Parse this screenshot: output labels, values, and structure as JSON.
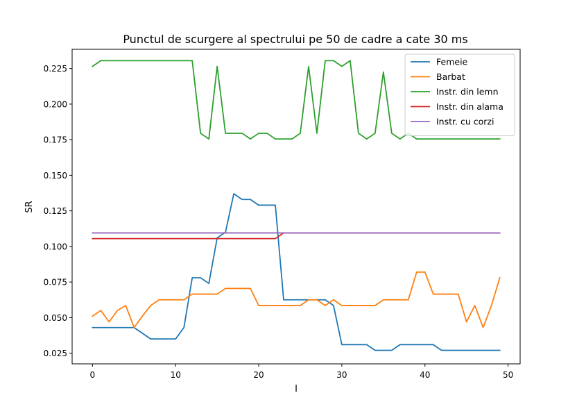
{
  "chart_data": {
    "type": "line",
    "title": "Punctul de scurgere al spectrului pe 50 de cadre a cate 30 ms",
    "xlabel": "I",
    "ylabel": "SR",
    "xlim": [
      -2.45,
      51.45
    ],
    "ylim": [
      0.0175,
      0.2385
    ],
    "x_ticks": [
      0,
      10,
      20,
      30,
      40,
      50
    ],
    "x_tick_labels": [
      "0",
      "10",
      "20",
      "30",
      "40",
      "50"
    ],
    "y_ticks": [
      0.025,
      0.05,
      0.075,
      0.1,
      0.125,
      0.15,
      0.175,
      0.2,
      0.225
    ],
    "y_tick_labels": [
      "0.025",
      "0.050",
      "0.075",
      "0.100",
      "0.125",
      "0.150",
      "0.175",
      "0.200",
      "0.225"
    ],
    "grid": false,
    "legend_position": "top-right",
    "x": [
      0,
      1,
      2,
      3,
      4,
      5,
      6,
      7,
      8,
      9,
      10,
      11,
      12,
      13,
      14,
      15,
      16,
      17,
      18,
      19,
      20,
      21,
      22,
      23,
      24,
      25,
      26,
      27,
      28,
      29,
      30,
      31,
      32,
      33,
      34,
      35,
      36,
      37,
      38,
      39,
      40,
      41,
      42,
      43,
      44,
      45,
      46,
      47,
      48,
      49
    ],
    "series": [
      {
        "name": "Femeie",
        "color": "#1f77b4",
        "values": [
          0.043,
          0.043,
          0.043,
          0.043,
          0.043,
          0.043,
          0.039,
          0.035,
          0.035,
          0.035,
          0.035,
          0.043,
          0.078,
          0.078,
          0.074,
          0.106,
          0.11,
          0.137,
          0.133,
          0.133,
          0.129,
          0.129,
          0.129,
          0.0625,
          0.0625,
          0.0625,
          0.0625,
          0.0625,
          0.0625,
          0.0585,
          0.031,
          0.031,
          0.031,
          0.031,
          0.027,
          0.027,
          0.027,
          0.031,
          0.031,
          0.031,
          0.031,
          0.031,
          0.027,
          0.027,
          0.027,
          0.027,
          0.027,
          0.027,
          0.027,
          0.027
        ]
      },
      {
        "name": "Barbat",
        "color": "#ff7f0e",
        "values": [
          0.051,
          0.055,
          0.047,
          0.055,
          0.0585,
          0.043,
          0.051,
          0.0585,
          0.0625,
          0.0625,
          0.0625,
          0.0625,
          0.0665,
          0.0665,
          0.0665,
          0.0665,
          0.0705,
          0.0705,
          0.0705,
          0.0705,
          0.0585,
          0.0585,
          0.0585,
          0.0585,
          0.0585,
          0.0585,
          0.0625,
          0.0625,
          0.0585,
          0.0625,
          0.0585,
          0.0585,
          0.0585,
          0.0585,
          0.0585,
          0.0625,
          0.0625,
          0.0625,
          0.0625,
          0.082,
          0.082,
          0.0665,
          0.0665,
          0.0665,
          0.0665,
          0.047,
          0.0585,
          0.043,
          0.0585,
          0.078
        ]
      },
      {
        "name": "Instr. din lemn",
        "color": "#2ca02c",
        "values": [
          0.2265,
          0.2305,
          0.2305,
          0.2305,
          0.2305,
          0.2305,
          0.2305,
          0.2305,
          0.2305,
          0.2305,
          0.2305,
          0.2305,
          0.2305,
          0.1795,
          0.1755,
          0.2265,
          0.1795,
          0.1795,
          0.1795,
          0.1755,
          0.1795,
          0.1795,
          0.1755,
          0.1755,
          0.1755,
          0.1795,
          0.2265,
          0.1795,
          0.2305,
          0.2305,
          0.2265,
          0.2305,
          0.1795,
          0.1755,
          0.1795,
          0.2225,
          0.1795,
          0.1755,
          0.1795,
          0.1755,
          0.1755,
          0.1755,
          0.1755,
          0.1755,
          0.1755,
          0.1755,
          0.1755,
          0.1755,
          0.1755,
          0.1755
        ]
      },
      {
        "name": "Instr. din alama",
        "color": "#d62728",
        "values": [
          0.1055,
          0.1055,
          0.1055,
          0.1055,
          0.1055,
          0.1055,
          0.1055,
          0.1055,
          0.1055,
          0.1055,
          0.1055,
          0.1055,
          0.1055,
          0.1055,
          0.1055,
          0.1055,
          0.1055,
          0.1055,
          0.1055,
          0.1055,
          0.1055,
          0.1055,
          0.1055,
          0.1095,
          0.1095,
          0.1095,
          0.1095,
          0.1095,
          0.1095,
          0.1095,
          0.1095,
          0.1095,
          0.1095,
          0.1095,
          0.1095,
          0.1095,
          0.1095,
          0.1095,
          0.1095,
          0.1095,
          0.1095,
          0.1095,
          0.1095,
          0.1095,
          0.1095,
          0.1095,
          0.1095,
          0.1095,
          0.1095,
          0.1095
        ]
      },
      {
        "name": "Instr. cu corzi",
        "color": "#9467bd",
        "values": [
          0.1095,
          0.1095,
          0.1095,
          0.1095,
          0.1095,
          0.1095,
          0.1095,
          0.1095,
          0.1095,
          0.1095,
          0.1095,
          0.1095,
          0.1095,
          0.1095,
          0.1095,
          0.1095,
          0.1095,
          0.1095,
          0.1095,
          0.1095,
          0.1095,
          0.1095,
          0.1095,
          0.1095,
          0.1095,
          0.1095,
          0.1095,
          0.1095,
          0.1095,
          0.1095,
          0.1095,
          0.1095,
          0.1095,
          0.1095,
          0.1095,
          0.1095,
          0.1095,
          0.1095,
          0.1095,
          0.1095,
          0.1095,
          0.1095,
          0.1095,
          0.1095,
          0.1095,
          0.1095,
          0.1095,
          0.1095,
          0.1095,
          0.1095
        ]
      }
    ]
  }
}
